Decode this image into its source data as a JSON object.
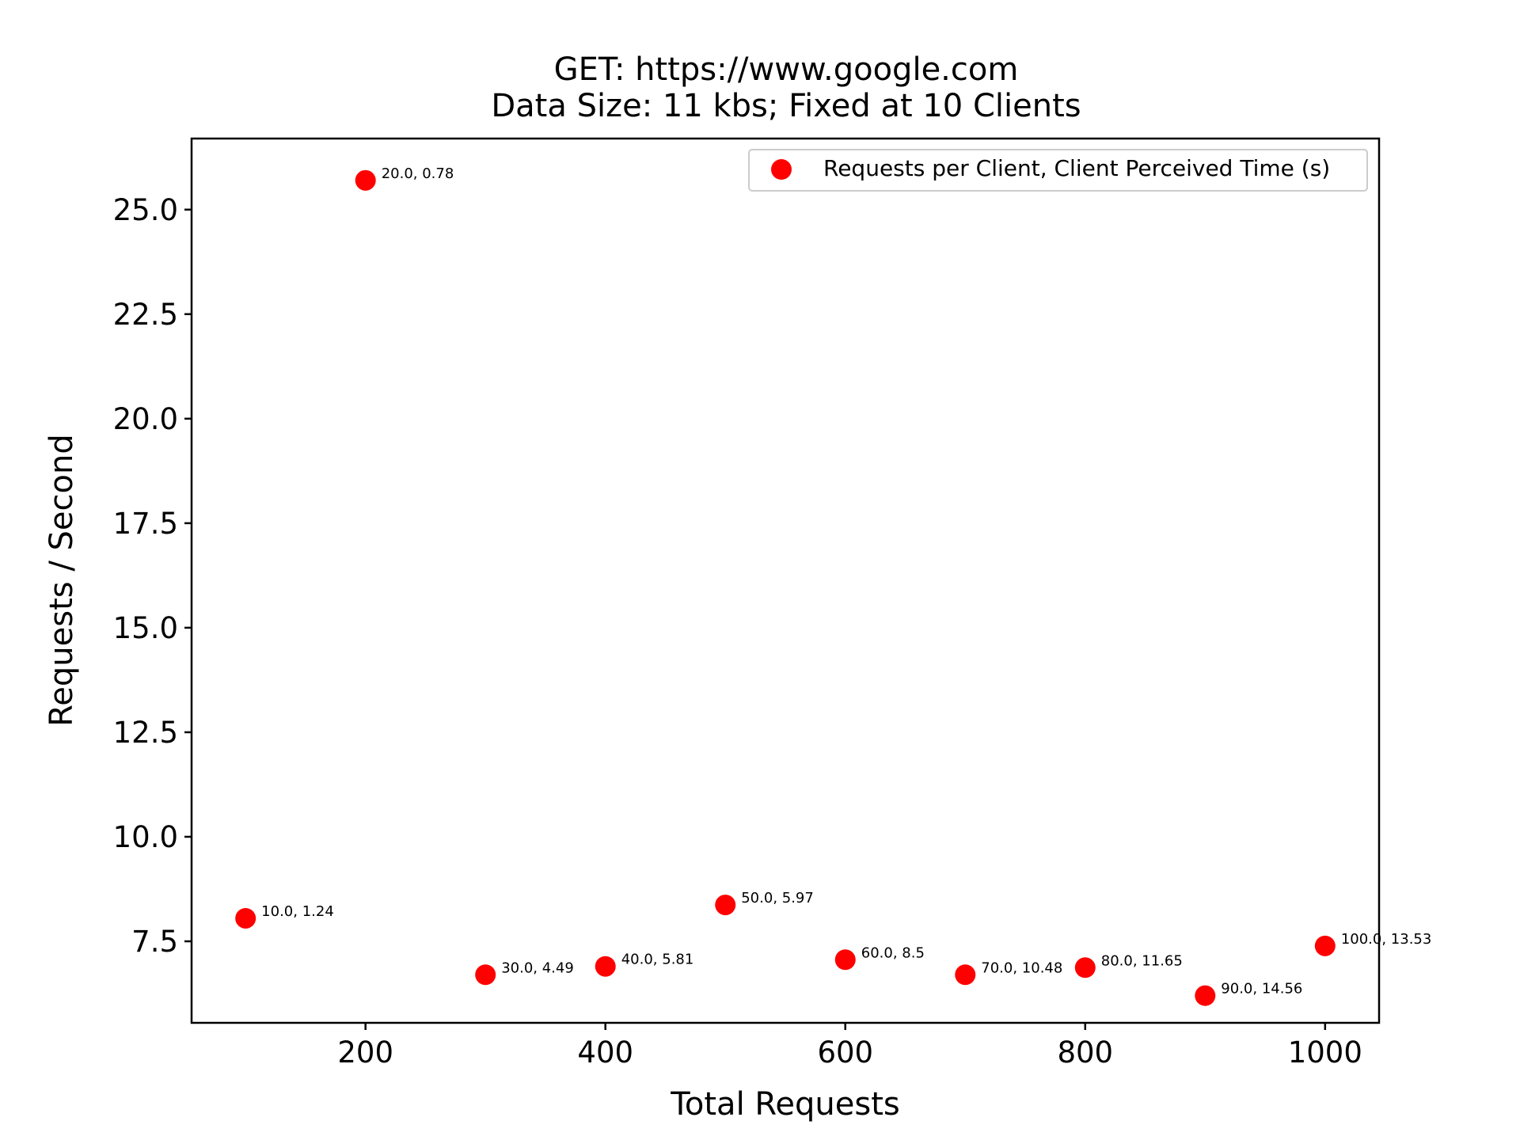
{
  "chart_data": {
    "type": "scatter",
    "title": [
      "GET: https://www.google.com",
      "Data Size: 11 kbs; Fixed at 10 Clients"
    ],
    "xlabel": "Total Requests",
    "ylabel": "Requests / Second",
    "xlim": [
      55,
      1045
    ],
    "ylim": [
      5.55,
      26.7
    ],
    "xticks": [
      200,
      400,
      600,
      800,
      1000
    ],
    "xtick_labels": [
      "200",
      "400",
      "600",
      "800",
      "1000"
    ],
    "yticks": [
      7.5,
      10.0,
      12.5,
      15.0,
      17.5,
      20.0,
      22.5,
      25.0
    ],
    "ytick_labels": [
      "7.5",
      "10.0",
      "12.5",
      "15.0",
      "17.5",
      "20.0",
      "22.5",
      "25.0"
    ],
    "grid": false,
    "legend_position": "top-right",
    "series": [
      {
        "name": "Requests per Client, Client Perceived Time (s)",
        "color": "#ff0000",
        "marker": "circle",
        "points": [
          {
            "x": 100,
            "y": 8.05,
            "label": "10.0, 1.24"
          },
          {
            "x": 200,
            "y": 25.7,
            "label": "20.0, 0.78"
          },
          {
            "x": 300,
            "y": 6.7,
            "label": "30.0, 4.49"
          },
          {
            "x": 400,
            "y": 6.9,
            "label": "40.0, 5.81"
          },
          {
            "x": 500,
            "y": 8.37,
            "label": "50.0, 5.97"
          },
          {
            "x": 600,
            "y": 7.06,
            "label": "60.0, 8.5"
          },
          {
            "x": 700,
            "y": 6.7,
            "label": "70.0, 10.48"
          },
          {
            "x": 800,
            "y": 6.87,
            "label": "80.0, 11.65"
          },
          {
            "x": 900,
            "y": 6.2,
            "label": "90.0, 14.56"
          },
          {
            "x": 1000,
            "y": 7.39,
            "label": "100.0, 13.53"
          }
        ]
      }
    ]
  }
}
